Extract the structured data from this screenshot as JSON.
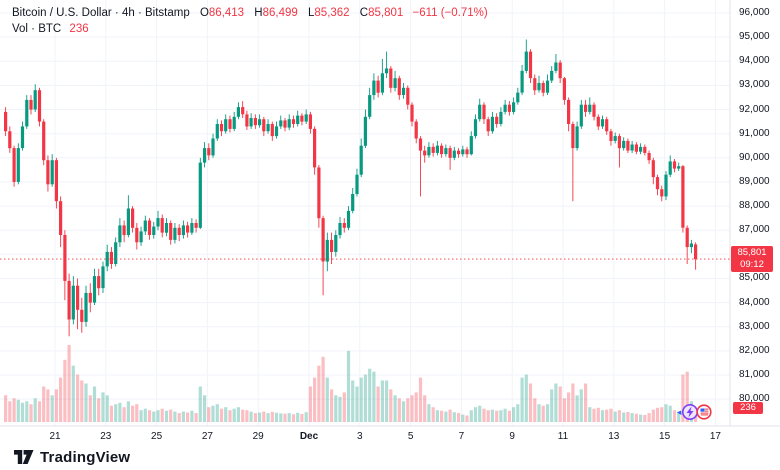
{
  "header": {
    "symbol": "Bitcoin / U.S. Dollar",
    "interval": "4h",
    "exchange": "Bitstamp",
    "separator": "·",
    "ohlc": {
      "o_label": "O",
      "o": "86,413",
      "h_label": "H",
      "h": "86,499",
      "l_label": "L",
      "l": "85,362",
      "c_label": "C",
      "c": "85,801",
      "change": "−611 (−0.71%)"
    },
    "volume_row": {
      "label": "Vol · BTC",
      "value": "236"
    }
  },
  "price_tag": {
    "price": "85,801",
    "countdown": "09:12"
  },
  "volume_tag": "236",
  "logo": {
    "text": "TradingView"
  },
  "events": [
    {
      "name": "crypto-event",
      "icon": "lightning"
    },
    {
      "name": "us-economic-event",
      "icon": "us-flag"
    }
  ],
  "colors": {
    "up": "#089981",
    "down": "#f23645",
    "vol_up": "rgba(8,153,129,0.32)",
    "vol_down": "rgba(242,54,69,0.32)",
    "grid": "#f0f3fa",
    "separator": "#e0e3eb",
    "axis_text": "#131722",
    "price_line": "#f23645",
    "tag_bg": "#f23645",
    "event_purple": "#7e3ff2",
    "event_blue": "#2962ff"
  },
  "y_axis": {
    "ticks": [
      {
        "value": 96000,
        "label": "96,000"
      },
      {
        "value": 95000,
        "label": "95,000"
      },
      {
        "value": 94000,
        "label": "94,000"
      },
      {
        "value": 93000,
        "label": "93,000"
      },
      {
        "value": 92000,
        "label": "92,000"
      },
      {
        "value": 91000,
        "label": "91,000"
      },
      {
        "value": 90000,
        "label": "90,000"
      },
      {
        "value": 89000,
        "label": "89,000"
      },
      {
        "value": 88000,
        "label": "88,000"
      },
      {
        "value": 87000,
        "label": "87,000"
      },
      {
        "value": 86000,
        "label": "86,000"
      },
      {
        "value": 85000,
        "label": "85,000"
      },
      {
        "value": 84000,
        "label": "84,000"
      },
      {
        "value": 83000,
        "label": "83,000"
      },
      {
        "value": 82000,
        "label": "82,000"
      },
      {
        "value": 81000,
        "label": "81,000"
      },
      {
        "value": 80000,
        "label": "80,000"
      }
    ]
  },
  "x_axis": {
    "ticks": [
      {
        "label": "21",
        "day": 0,
        "bold": false
      },
      {
        "label": "23",
        "day": 2,
        "bold": false
      },
      {
        "label": "25",
        "day": 4,
        "bold": false
      },
      {
        "label": "27",
        "day": 6,
        "bold": false
      },
      {
        "label": "29",
        "day": 8,
        "bold": false
      },
      {
        "label": "Dec",
        "day": 10,
        "bold": true
      },
      {
        "label": "3",
        "day": 12,
        "bold": false
      },
      {
        "label": "5",
        "day": 14,
        "bold": false
      },
      {
        "label": "7",
        "day": 16,
        "bold": false
      },
      {
        "label": "9",
        "day": 18,
        "bold": false
      },
      {
        "label": "11",
        "day": 20,
        "bold": false
      },
      {
        "label": "13",
        "day": 22,
        "bold": false
      },
      {
        "label": "15",
        "day": 24,
        "bold": false
      },
      {
        "label": "17",
        "day": 26,
        "bold": false
      }
    ]
  },
  "chart_data": {
    "type": "candlestick",
    "title": "Bitcoin / U.S. Dollar",
    "interval": "4h",
    "exchange": "Bitstamp",
    "x_range": [
      "Nov 19",
      "Dec 16"
    ],
    "price_axis": {
      "min": 80000,
      "max": 96000,
      "step": 1000
    },
    "current_price": 85801,
    "current_volume": 236,
    "last_ohlc": {
      "open": 86413,
      "high": 86499,
      "low": 85362,
      "close": 85801,
      "change": -611,
      "change_pct": -0.71
    },
    "volume_scale_max": 2600,
    "candles_format": [
      "open",
      "high",
      "low",
      "close",
      "volume"
    ],
    "candles": [
      [
        91900,
        92100,
        90900,
        91100,
        900
      ],
      [
        91100,
        91300,
        90200,
        90400,
        700
      ],
      [
        90400,
        90500,
        88800,
        89000,
        800
      ],
      [
        89000,
        90600,
        88900,
        90400,
        750
      ],
      [
        90400,
        91500,
        90300,
        91300,
        650
      ],
      [
        91300,
        92600,
        91200,
        92400,
        700
      ],
      [
        92400,
        92600,
        91800,
        92000,
        600
      ],
      [
        92000,
        93050,
        91900,
        92800,
        800
      ],
      [
        92800,
        92900,
        91300,
        91500,
        700
      ],
      [
        91500,
        91600,
        89700,
        89900,
        1200
      ],
      [
        89900,
        90100,
        88600,
        88900,
        1100
      ],
      [
        88900,
        90150,
        88800,
        89900,
        900
      ],
      [
        89900,
        90000,
        87900,
        88200,
        1100
      ],
      [
        88200,
        88400,
        86300,
        86800,
        1500
      ],
      [
        86800,
        87000,
        84100,
        84900,
        2100
      ],
      [
        84900,
        85200,
        82600,
        83300,
        2600
      ],
      [
        83300,
        85100,
        83100,
        84700,
        1900
      ],
      [
        84700,
        85000,
        82900,
        83700,
        1600
      ],
      [
        83700,
        84200,
        82750,
        83200,
        1400
      ],
      [
        83200,
        84700,
        83000,
        84400,
        1300
      ],
      [
        84400,
        84800,
        83600,
        84000,
        900
      ],
      [
        84000,
        85400,
        83900,
        85100,
        1200
      ],
      [
        85100,
        85400,
        84300,
        84600,
        800
      ],
      [
        84600,
        85700,
        84400,
        85500,
        1000
      ],
      [
        85500,
        86400,
        85300,
        86100,
        900
      ],
      [
        86100,
        86300,
        85400,
        85600,
        550
      ],
      [
        85600,
        86700,
        85500,
        86500,
        600
      ],
      [
        86500,
        87500,
        86300,
        87200,
        650
      ],
      [
        87200,
        87400,
        86500,
        86800,
        500
      ],
      [
        86800,
        88450,
        86700,
        87900,
        700
      ],
      [
        87900,
        88000,
        86900,
        87100,
        550
      ],
      [
        87100,
        87300,
        86200,
        86500,
        600
      ],
      [
        86500,
        87150,
        86350,
        86950,
        400
      ],
      [
        86950,
        87600,
        86800,
        87400,
        450
      ],
      [
        87400,
        87500,
        86600,
        86800,
        400
      ],
      [
        86800,
        87350,
        86650,
        87150,
        350
      ],
      [
        87150,
        87800,
        87000,
        87500,
        400
      ],
      [
        87500,
        87650,
        86700,
        86900,
        450
      ],
      [
        86900,
        87500,
        86750,
        87300,
        380
      ],
      [
        87300,
        87400,
        86400,
        86600,
        420
      ],
      [
        86600,
        87300,
        86450,
        87100,
        350
      ],
      [
        87100,
        87250,
        86550,
        86800,
        300
      ],
      [
        86800,
        87400,
        86650,
        87200,
        350
      ],
      [
        87200,
        87350,
        86700,
        86900,
        320
      ],
      [
        86900,
        87500,
        86800,
        87300,
        380
      ],
      [
        87300,
        87450,
        86900,
        87100,
        300
      ],
      [
        87100,
        90000,
        87050,
        89800,
        1200
      ],
      [
        89800,
        90650,
        89600,
        90400,
        900
      ],
      [
        90400,
        90600,
        89900,
        90100,
        500
      ],
      [
        90100,
        91000,
        90000,
        90800,
        550
      ],
      [
        90800,
        91600,
        90700,
        91400,
        600
      ],
      [
        91400,
        91550,
        90900,
        91100,
        450
      ],
      [
        91100,
        91800,
        91000,
        91600,
        500
      ],
      [
        91600,
        91750,
        91050,
        91200,
        400
      ],
      [
        91200,
        91900,
        91100,
        91700,
        450
      ],
      [
        91700,
        92300,
        91600,
        92100,
        500
      ],
      [
        92100,
        92350,
        91650,
        91800,
        420
      ],
      [
        91800,
        91950,
        91150,
        91300,
        400
      ],
      [
        91300,
        91850,
        91200,
        91650,
        350
      ],
      [
        91650,
        91800,
        91200,
        91350,
        300
      ],
      [
        91350,
        91800,
        91250,
        91600,
        320
      ],
      [
        91600,
        91700,
        90900,
        91100,
        350
      ],
      [
        91100,
        91600,
        91000,
        91400,
        300
      ],
      [
        91400,
        91500,
        90700,
        90900,
        340
      ],
      [
        90900,
        91500,
        90800,
        91300,
        310
      ],
      [
        91300,
        91750,
        91200,
        91550,
        290
      ],
      [
        91550,
        91650,
        91100,
        91250,
        280
      ],
      [
        91250,
        91800,
        91150,
        91600,
        300
      ],
      [
        91600,
        91750,
        91250,
        91400,
        260
      ],
      [
        91400,
        91950,
        91300,
        91750,
        310
      ],
      [
        91750,
        91850,
        91350,
        91500,
        270
      ],
      [
        91500,
        92000,
        91400,
        91800,
        330
      ],
      [
        91800,
        91900,
        91000,
        91200,
        1200
      ],
      [
        91200,
        91300,
        89300,
        89600,
        1500
      ],
      [
        89600,
        89700,
        87100,
        87500,
        1900
      ],
      [
        87500,
        87600,
        84300,
        85700,
        2200
      ],
      [
        85700,
        86900,
        85300,
        86600,
        1500
      ],
      [
        86600,
        86900,
        85600,
        86100,
        1100
      ],
      [
        86100,
        87000,
        85900,
        86800,
        900
      ],
      [
        86800,
        87550,
        86650,
        87300,
        850
      ],
      [
        87300,
        87500,
        86900,
        87100,
        1000
      ],
      [
        87100,
        88000,
        87000,
        87800,
        2400
      ],
      [
        87800,
        88750,
        87700,
        88500,
        1400
      ],
      [
        88500,
        89550,
        88400,
        89300,
        1200
      ],
      [
        89300,
        90800,
        89200,
        90500,
        1500
      ],
      [
        90500,
        92000,
        90400,
        91700,
        1600
      ],
      [
        91700,
        92900,
        91600,
        92600,
        1800
      ],
      [
        92600,
        93500,
        92400,
        93200,
        1700
      ],
      [
        93200,
        93400,
        92500,
        92700,
        1200
      ],
      [
        92700,
        94100,
        92600,
        93500,
        1400
      ],
      [
        93500,
        94400,
        93300,
        93700,
        1400
      ],
      [
        93700,
        93800,
        92700,
        92900,
        1100
      ],
      [
        92900,
        93600,
        92750,
        93300,
        900
      ],
      [
        93300,
        93400,
        92400,
        92600,
        800
      ],
      [
        92600,
        93100,
        92450,
        92900,
        700
      ],
      [
        92900,
        93000,
        92000,
        92200,
        800
      ],
      [
        92200,
        92300,
        91300,
        91500,
        900
      ],
      [
        91500,
        91600,
        90600,
        90800,
        1000
      ],
      [
        90800,
        90900,
        88400,
        90300,
        1500
      ],
      [
        90300,
        90500,
        89800,
        90100,
        900
      ],
      [
        90100,
        90650,
        90000,
        90450,
        600
      ],
      [
        90450,
        90600,
        90050,
        90200,
        500
      ],
      [
        90200,
        90700,
        90100,
        90500,
        400
      ],
      [
        90500,
        90600,
        90000,
        90150,
        380
      ],
      [
        90150,
        90550,
        90050,
        90400,
        350
      ],
      [
        90400,
        90500,
        89500,
        90000,
        420
      ],
      [
        90000,
        90450,
        89900,
        90300,
        330
      ],
      [
        90300,
        90400,
        90000,
        90150,
        300
      ],
      [
        90150,
        90500,
        90050,
        90350,
        250
      ],
      [
        90350,
        90450,
        90000,
        90150,
        220
      ],
      [
        90150,
        91100,
        90100,
        90900,
        400
      ],
      [
        90900,
        91800,
        90800,
        91600,
        500
      ],
      [
        91600,
        92450,
        91500,
        92200,
        550
      ],
      [
        92200,
        92300,
        91400,
        91600,
        450
      ],
      [
        91600,
        91700,
        90900,
        91100,
        400
      ],
      [
        91100,
        91900,
        91000,
        91700,
        420
      ],
      [
        91700,
        91850,
        91250,
        91400,
        380
      ],
      [
        91400,
        92100,
        91300,
        91900,
        400
      ],
      [
        91900,
        92400,
        91800,
        92200,
        450
      ],
      [
        92200,
        92350,
        91750,
        91900,
        380
      ],
      [
        91900,
        92500,
        91800,
        92300,
        500
      ],
      [
        92300,
        92900,
        92200,
        92700,
        600
      ],
      [
        92700,
        93850,
        92600,
        93600,
        1500
      ],
      [
        93600,
        94900,
        93500,
        94400,
        1600
      ],
      [
        94400,
        94500,
        93100,
        93300,
        1300
      ],
      [
        93300,
        93450,
        92600,
        92800,
        800
      ],
      [
        92800,
        93400,
        92700,
        93100,
        600
      ],
      [
        93100,
        93200,
        92550,
        92700,
        550
      ],
      [
        92700,
        93450,
        92600,
        93200,
        600
      ],
      [
        93200,
        93800,
        93100,
        93600,
        1100
      ],
      [
        93600,
        94300,
        93500,
        93950,
        1300
      ],
      [
        93950,
        94050,
        93100,
        93300,
        1200
      ],
      [
        93300,
        93350,
        92200,
        92400,
        800
      ],
      [
        92400,
        92500,
        91100,
        91400,
        1000
      ],
      [
        91400,
        91500,
        88200,
        90400,
        1300
      ],
      [
        90400,
        91500,
        90300,
        91300,
        900
      ],
      [
        91300,
        92400,
        91200,
        92200,
        1100
      ],
      [
        92200,
        92400,
        91700,
        91900,
        1300
      ],
      [
        91900,
        92500,
        91800,
        92200,
        500
      ],
      [
        92200,
        92300,
        91550,
        91700,
        450
      ],
      [
        91700,
        91800,
        91150,
        91300,
        480
      ],
      [
        91300,
        91750,
        91200,
        91600,
        400
      ],
      [
        91600,
        91700,
        90950,
        91100,
        420
      ],
      [
        91100,
        91200,
        90500,
        90700,
        450
      ],
      [
        90700,
        91050,
        90600,
        90900,
        350
      ],
      [
        90900,
        91000,
        89600,
        90400,
        400
      ],
      [
        90400,
        90850,
        90300,
        90700,
        320
      ],
      [
        90700,
        90800,
        90200,
        90300,
        340
      ],
      [
        90300,
        90700,
        90200,
        90550,
        300
      ],
      [
        90550,
        90650,
        90150,
        90250,
        280
      ],
      [
        90250,
        90600,
        90150,
        90450,
        250
      ],
      [
        90450,
        90550,
        90100,
        90200,
        240
      ],
      [
        90200,
        90300,
        89750,
        89900,
        300
      ],
      [
        89900,
        90000,
        88900,
        89200,
        420
      ],
      [
        89200,
        89300,
        88450,
        88700,
        480
      ],
      [
        88700,
        88850,
        88200,
        88400,
        500
      ],
      [
        88400,
        89450,
        88250,
        89300,
        600
      ],
      [
        89300,
        90100,
        89200,
        89850,
        550
      ],
      [
        89850,
        89950,
        89400,
        89550,
        400
      ],
      [
        89550,
        89800,
        89450,
        89650,
        350
      ],
      [
        89650,
        89700,
        86900,
        87100,
        1600
      ],
      [
        87100,
        87200,
        85600,
        86300,
        1700
      ],
      [
        86300,
        86600,
        86050,
        86450,
        700
      ],
      [
        86413,
        86499,
        85362,
        85801,
        236
      ]
    ]
  }
}
